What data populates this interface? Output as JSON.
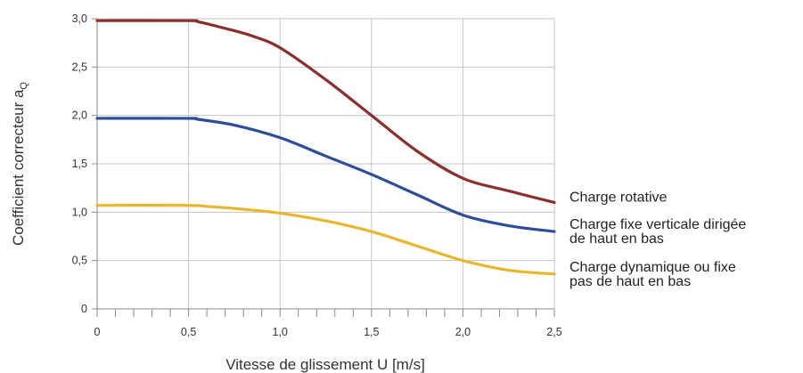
{
  "chart_data": {
    "type": "line",
    "xlabel": "Vitesse de glissement U [m/s]",
    "ylabel": "Coefficient correcteur a",
    "ylabel_subscript": "Q",
    "xlim": [
      0,
      2.5
    ],
    "ylim": [
      0,
      3.0
    ],
    "x_ticks": [
      "0",
      "0,5",
      "1,0",
      "1,5",
      "2,0",
      "2,5"
    ],
    "y_ticks": [
      "0",
      "0,5",
      "1,0",
      "1,5",
      "2,0",
      "2,5",
      "3,0"
    ],
    "grid": true,
    "legend_placement": "right",
    "series": [
      {
        "name": "Charge rotative",
        "color": "#8b2f2a",
        "x": [
          0,
          0.5,
          0.55,
          0.7,
          0.85,
          1.0,
          1.25,
          1.5,
          1.75,
          2.0,
          2.25,
          2.5
        ],
        "y": [
          2.98,
          2.98,
          2.97,
          2.9,
          2.82,
          2.7,
          2.37,
          2.0,
          1.63,
          1.35,
          1.22,
          1.1
        ]
      },
      {
        "name": "Charge fixe verticale dirigée",
        "name_line2": "de haut en bas",
        "color": "#2c4d9a",
        "x": [
          0,
          0.5,
          0.55,
          0.75,
          1.0,
          1.25,
          1.5,
          1.75,
          2.0,
          2.25,
          2.5
        ],
        "y": [
          1.97,
          1.97,
          1.96,
          1.9,
          1.77,
          1.58,
          1.39,
          1.18,
          0.97,
          0.86,
          0.8
        ]
      },
      {
        "name": "Charge dynamique ou fixe",
        "name_line2": "pas de haut en bas",
        "color": "#e8b52e",
        "x": [
          0,
          0.5,
          0.6,
          0.8,
          1.0,
          1.25,
          1.5,
          1.75,
          2.0,
          2.25,
          2.5
        ],
        "y": [
          1.07,
          1.07,
          1.06,
          1.03,
          0.99,
          0.91,
          0.8,
          0.65,
          0.5,
          0.4,
          0.36
        ]
      }
    ]
  }
}
